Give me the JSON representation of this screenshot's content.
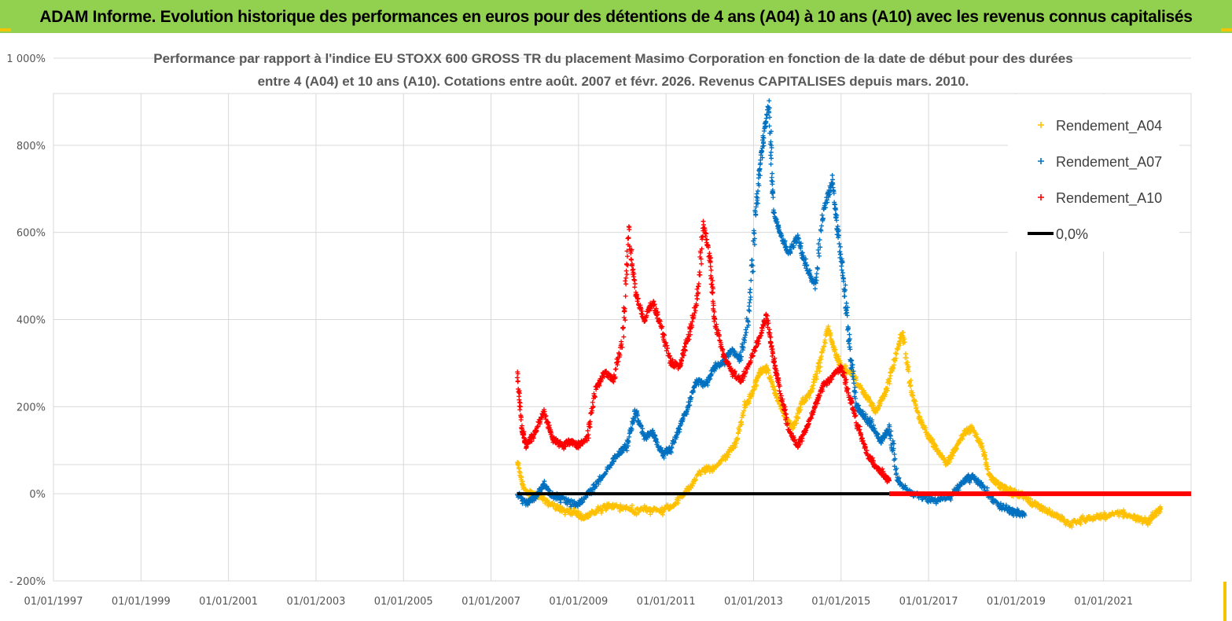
{
  "header": {
    "title": "ADAM Informe. Evolution historique des performances en euros pour des détentions de 4 ans (A04) à 10 ans (A10) avec les revenus connus capitalisés"
  },
  "colors": {
    "header_bg": "#92d050",
    "corner_accent": "#f5c400",
    "A04": "#ffc000",
    "A07": "#0070c0",
    "A10": "#ff0000",
    "zero": "#000000"
  },
  "chart_data": {
    "type": "scatter",
    "title_line1": "Performance par rapport à l'indice EU STOXX 600 GROSS TR  du placement Masimo Corporation en fonction de la date de début pour des durées",
    "title_line2": "entre 4 (A04) et 10 ans (A10). Cotations entre août. 2007 et févr. 2026. Revenus CAPITALISES depuis mars. 2010.",
    "x_range": [
      1997.0,
      2023.0
    ],
    "ylim": [
      -200,
      1000
    ],
    "y_ticks": [
      -200,
      0,
      200,
      400,
      600,
      800,
      1000
    ],
    "y_tick_labels": [
      "- 200%",
      "0%",
      "200%",
      "400%",
      "600%",
      "800%",
      "1 000%"
    ],
    "x_ticks": [
      1997,
      1999,
      2001,
      2003,
      2005,
      2007,
      2009,
      2011,
      2013,
      2015,
      2017,
      2019,
      2021
    ],
    "x_tick_labels": [
      "01/01/1997",
      "01/01/1999",
      "01/01/2001",
      "01/01/2003",
      "01/01/2005",
      "01/01/2007",
      "01/01/2009",
      "01/01/2011",
      "01/01/2013",
      "01/01/2015",
      "01/01/2017",
      "01/01/2019",
      "01/01/2021"
    ],
    "gridlines_y": [
      -200,
      0,
      200,
      400,
      600,
      800,
      1000
    ],
    "legend_position": "top-right",
    "series": [
      {
        "name": "Rendement_A04",
        "color": "#ffc000",
        "marker": "+",
        "points": [
          [
            2007.6,
            70
          ],
          [
            2007.75,
            10
          ],
          [
            2008.0,
            0
          ],
          [
            2008.3,
            -20
          ],
          [
            2008.6,
            -35
          ],
          [
            2008.9,
            -45
          ],
          [
            2009.1,
            -55
          ],
          [
            2009.4,
            -40
          ],
          [
            2009.7,
            -25
          ],
          [
            2010.0,
            -30
          ],
          [
            2010.3,
            -40
          ],
          [
            2010.6,
            -35
          ],
          [
            2010.9,
            -40
          ],
          [
            2011.2,
            -25
          ],
          [
            2011.5,
            10
          ],
          [
            2011.8,
            50
          ],
          [
            2012.1,
            60
          ],
          [
            2012.4,
            90
          ],
          [
            2012.6,
            120
          ],
          [
            2012.8,
            200
          ],
          [
            2013.0,
            240
          ],
          [
            2013.15,
            280
          ],
          [
            2013.3,
            290
          ],
          [
            2013.5,
            230
          ],
          [
            2013.7,
            180
          ],
          [
            2013.9,
            150
          ],
          [
            2014.1,
            210
          ],
          [
            2014.3,
            230
          ],
          [
            2014.5,
            300
          ],
          [
            2014.7,
            380
          ],
          [
            2014.85,
            330
          ],
          [
            2015.0,
            290
          ],
          [
            2015.2,
            280
          ],
          [
            2015.4,
            250
          ],
          [
            2015.6,
            220
          ],
          [
            2015.8,
            190
          ],
          [
            2016.0,
            230
          ],
          [
            2016.2,
            300
          ],
          [
            2016.4,
            370
          ],
          [
            2016.6,
            240
          ],
          [
            2016.8,
            170
          ],
          [
            2017.0,
            130
          ],
          [
            2017.2,
            100
          ],
          [
            2017.4,
            70
          ],
          [
            2017.6,
            100
          ],
          [
            2017.8,
            140
          ],
          [
            2018.0,
            150
          ],
          [
            2018.2,
            110
          ],
          [
            2018.4,
            40
          ],
          [
            2018.6,
            20
          ],
          [
            2018.8,
            10
          ],
          [
            2019.0,
            0
          ],
          [
            2019.3,
            -15
          ],
          [
            2019.6,
            -35
          ],
          [
            2019.9,
            -50
          ],
          [
            2020.2,
            -70
          ],
          [
            2020.5,
            -60
          ],
          [
            2020.8,
            -55
          ],
          [
            2021.1,
            -50
          ],
          [
            2021.4,
            -45
          ],
          [
            2021.7,
            -55
          ],
          [
            2022.0,
            -65
          ],
          [
            2022.2,
            -45
          ],
          [
            2022.3,
            -35
          ]
        ]
      },
      {
        "name": "Rendement_A07",
        "color": "#0070c0",
        "marker": "+",
        "points": [
          [
            2007.6,
            0
          ],
          [
            2007.8,
            -20
          ],
          [
            2008.0,
            -10
          ],
          [
            2008.2,
            20
          ],
          [
            2008.4,
            -5
          ],
          [
            2008.7,
            -15
          ],
          [
            2009.0,
            -25
          ],
          [
            2009.3,
            10
          ],
          [
            2009.6,
            50
          ],
          [
            2009.9,
            90
          ],
          [
            2010.1,
            110
          ],
          [
            2010.3,
            190
          ],
          [
            2010.5,
            130
          ],
          [
            2010.7,
            140
          ],
          [
            2010.9,
            90
          ],
          [
            2011.1,
            100
          ],
          [
            2011.3,
            150
          ],
          [
            2011.5,
            200
          ],
          [
            2011.7,
            260
          ],
          [
            2011.9,
            250
          ],
          [
            2012.1,
            290
          ],
          [
            2012.3,
            300
          ],
          [
            2012.5,
            330
          ],
          [
            2012.7,
            310
          ],
          [
            2012.9,
            420
          ],
          [
            2013.05,
            650
          ],
          [
            2013.2,
            800
          ],
          [
            2013.35,
            900
          ],
          [
            2013.45,
            650
          ],
          [
            2013.6,
            600
          ],
          [
            2013.8,
            550
          ],
          [
            2014.0,
            590
          ],
          [
            2014.2,
            520
          ],
          [
            2014.4,
            480
          ],
          [
            2014.6,
            650
          ],
          [
            2014.8,
            720
          ],
          [
            2014.9,
            620
          ],
          [
            2015.05,
            500
          ],
          [
            2015.2,
            330
          ],
          [
            2015.35,
            200
          ],
          [
            2015.5,
            180
          ],
          [
            2015.7,
            160
          ],
          [
            2015.9,
            120
          ],
          [
            2016.1,
            150
          ],
          [
            2016.3,
            30
          ],
          [
            2016.6,
            0
          ],
          [
            2016.9,
            -10
          ],
          [
            2017.2,
            -15
          ],
          [
            2017.5,
            -5
          ],
          [
            2017.8,
            30
          ],
          [
            2018.0,
            40
          ],
          [
            2018.2,
            20
          ],
          [
            2018.5,
            -20
          ],
          [
            2018.8,
            -35
          ],
          [
            2019.0,
            -45
          ],
          [
            2019.2,
            -50
          ]
        ]
      },
      {
        "name": "Rendement_A10",
        "color": "#ff0000",
        "marker": "+",
        "points": [
          [
            2007.6,
            280
          ],
          [
            2007.7,
            150
          ],
          [
            2007.8,
            110
          ],
          [
            2008.0,
            140
          ],
          [
            2008.2,
            190
          ],
          [
            2008.4,
            130
          ],
          [
            2008.6,
            110
          ],
          [
            2008.8,
            120
          ],
          [
            2009.0,
            110
          ],
          [
            2009.2,
            130
          ],
          [
            2009.4,
            240
          ],
          [
            2009.6,
            280
          ],
          [
            2009.8,
            260
          ],
          [
            2010.0,
            350
          ],
          [
            2010.15,
            600
          ],
          [
            2010.3,
            460
          ],
          [
            2010.5,
            400
          ],
          [
            2010.7,
            440
          ],
          [
            2010.9,
            380
          ],
          [
            2011.1,
            300
          ],
          [
            2011.3,
            290
          ],
          [
            2011.5,
            360
          ],
          [
            2011.7,
            440
          ],
          [
            2011.85,
            620
          ],
          [
            2012.0,
            540
          ],
          [
            2012.1,
            400
          ],
          [
            2012.3,
            320
          ],
          [
            2012.5,
            280
          ],
          [
            2012.7,
            260
          ],
          [
            2012.9,
            300
          ],
          [
            2013.1,
            350
          ],
          [
            2013.3,
            410
          ],
          [
            2013.45,
            310
          ],
          [
            2013.6,
            240
          ],
          [
            2013.8,
            150
          ],
          [
            2014.0,
            110
          ],
          [
            2014.2,
            150
          ],
          [
            2014.4,
            200
          ],
          [
            2014.6,
            250
          ],
          [
            2014.8,
            270
          ],
          [
            2015.0,
            290
          ],
          [
            2015.2,
            220
          ],
          [
            2015.4,
            150
          ],
          [
            2015.6,
            90
          ],
          [
            2015.8,
            60
          ],
          [
            2016.0,
            40
          ],
          [
            2016.1,
            30
          ]
        ]
      },
      {
        "name": "0,0%",
        "color": "#000000",
        "marker": "line",
        "points": [
          [
            2007.6,
            0
          ],
          [
            2016.1,
            0
          ]
        ]
      },
      {
        "name": "",
        "color": "#ff0000",
        "marker": "line",
        "points": [
          [
            2016.1,
            0
          ],
          [
            2023.0,
            0
          ]
        ]
      }
    ]
  }
}
